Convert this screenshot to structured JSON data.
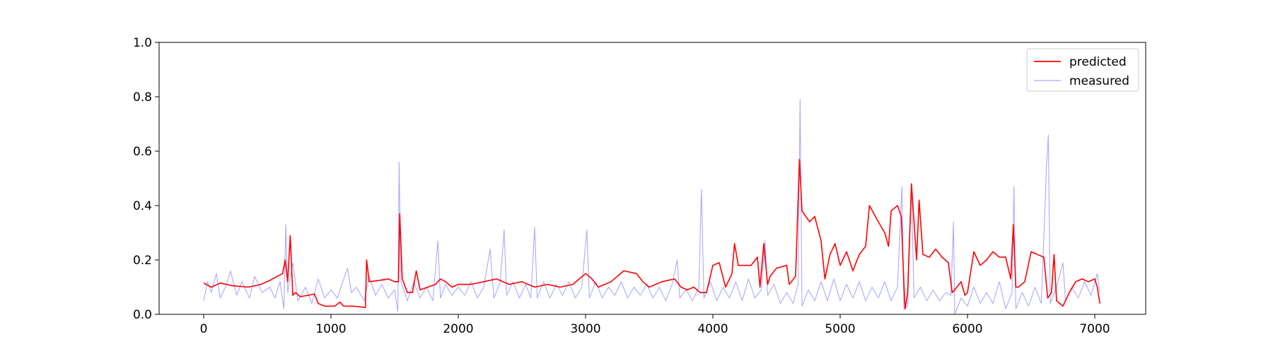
{
  "chart_data": {
    "type": "line",
    "title": "",
    "xlabel": "",
    "ylabel": "",
    "xlim": [
      -350,
      7400
    ],
    "ylim": [
      0.0,
      1.0
    ],
    "x_ticks": [
      0,
      1000,
      2000,
      3000,
      4000,
      5000,
      6000,
      7000
    ],
    "y_ticks": [
      0.0,
      0.2,
      0.4,
      0.6,
      0.8,
      1.0
    ],
    "x_tick_labels": [
      "0",
      "1000",
      "2000",
      "3000",
      "4000",
      "5000",
      "6000",
      "7000"
    ],
    "y_tick_labels": [
      "0.0",
      "0.2",
      "0.4",
      "0.6",
      "0.8",
      "1.0"
    ],
    "grid": false,
    "legend_position": "upper right",
    "series": [
      {
        "name": "predicted",
        "color": "#ff0000",
        "points": [
          [
            0,
            0.115
          ],
          [
            60,
            0.1
          ],
          [
            130,
            0.115
          ],
          [
            230,
            0.105
          ],
          [
            350,
            0.1
          ],
          [
            450,
            0.11
          ],
          [
            520,
            0.125
          ],
          [
            580,
            0.14
          ],
          [
            620,
            0.15
          ],
          [
            640,
            0.2
          ],
          [
            660,
            0.12
          ],
          [
            680,
            0.29
          ],
          [
            700,
            0.07
          ],
          [
            720,
            0.08
          ],
          [
            760,
            0.065
          ],
          [
            820,
            0.07
          ],
          [
            870,
            0.075
          ],
          [
            900,
            0.04
          ],
          [
            950,
            0.03
          ],
          [
            1030,
            0.03
          ],
          [
            1070,
            0.045
          ],
          [
            1100,
            0.03
          ],
          [
            1180,
            0.03
          ],
          [
            1270,
            0.025
          ],
          [
            1280,
            0.2
          ],
          [
            1300,
            0.12
          ],
          [
            1380,
            0.125
          ],
          [
            1450,
            0.13
          ],
          [
            1500,
            0.12
          ],
          [
            1530,
            0.12
          ],
          [
            1540,
            0.37
          ],
          [
            1560,
            0.13
          ],
          [
            1600,
            0.08
          ],
          [
            1640,
            0.08
          ],
          [
            1670,
            0.16
          ],
          [
            1700,
            0.09
          ],
          [
            1760,
            0.1
          ],
          [
            1820,
            0.11
          ],
          [
            1860,
            0.13
          ],
          [
            1900,
            0.12
          ],
          [
            1950,
            0.1
          ],
          [
            2000,
            0.11
          ],
          [
            2100,
            0.11
          ],
          [
            2200,
            0.12
          ],
          [
            2300,
            0.13
          ],
          [
            2400,
            0.11
          ],
          [
            2500,
            0.12
          ],
          [
            2600,
            0.1
          ],
          [
            2700,
            0.11
          ],
          [
            2800,
            0.1
          ],
          [
            2900,
            0.11
          ],
          [
            2950,
            0.13
          ],
          [
            3000,
            0.15
          ],
          [
            3050,
            0.13
          ],
          [
            3100,
            0.1
          ],
          [
            3200,
            0.12
          ],
          [
            3300,
            0.16
          ],
          [
            3400,
            0.15
          ],
          [
            3450,
            0.12
          ],
          [
            3500,
            0.1
          ],
          [
            3600,
            0.12
          ],
          [
            3700,
            0.13
          ],
          [
            3750,
            0.1
          ],
          [
            3800,
            0.09
          ],
          [
            3850,
            0.1
          ],
          [
            3900,
            0.08
          ],
          [
            3950,
            0.08
          ],
          [
            4000,
            0.18
          ],
          [
            4050,
            0.19
          ],
          [
            4100,
            0.1
          ],
          [
            4150,
            0.15
          ],
          [
            4170,
            0.26
          ],
          [
            4200,
            0.18
          ],
          [
            4300,
            0.18
          ],
          [
            4350,
            0.21
          ],
          [
            4370,
            0.1
          ],
          [
            4400,
            0.26
          ],
          [
            4430,
            0.11
          ],
          [
            4450,
            0.14
          ],
          [
            4500,
            0.17
          ],
          [
            4580,
            0.18
          ],
          [
            4600,
            0.11
          ],
          [
            4650,
            0.14
          ],
          [
            4680,
            0.57
          ],
          [
            4700,
            0.38
          ],
          [
            4760,
            0.34
          ],
          [
            4800,
            0.36
          ],
          [
            4850,
            0.27
          ],
          [
            4880,
            0.13
          ],
          [
            4920,
            0.22
          ],
          [
            4960,
            0.26
          ],
          [
            5000,
            0.18
          ],
          [
            5050,
            0.23
          ],
          [
            5100,
            0.16
          ],
          [
            5150,
            0.22
          ],
          [
            5200,
            0.25
          ],
          [
            5230,
            0.4
          ],
          [
            5300,
            0.34
          ],
          [
            5350,
            0.3
          ],
          [
            5380,
            0.25
          ],
          [
            5400,
            0.38
          ],
          [
            5450,
            0.4
          ],
          [
            5480,
            0.36
          ],
          [
            5500,
            0.12
          ],
          [
            5510,
            0.02
          ],
          [
            5530,
            0.08
          ],
          [
            5560,
            0.48
          ],
          [
            5600,
            0.2
          ],
          [
            5620,
            0.42
          ],
          [
            5650,
            0.22
          ],
          [
            5700,
            0.21
          ],
          [
            5750,
            0.24
          ],
          [
            5800,
            0.21
          ],
          [
            5850,
            0.19
          ],
          [
            5880,
            0.08
          ],
          [
            5900,
            0.09
          ],
          [
            5950,
            0.12
          ],
          [
            5980,
            0.07
          ],
          [
            6000,
            0.08
          ],
          [
            6050,
            0.23
          ],
          [
            6100,
            0.18
          ],
          [
            6150,
            0.2
          ],
          [
            6200,
            0.23
          ],
          [
            6250,
            0.21
          ],
          [
            6300,
            0.21
          ],
          [
            6340,
            0.13
          ],
          [
            6360,
            0.33
          ],
          [
            6380,
            0.1
          ],
          [
            6400,
            0.1
          ],
          [
            6450,
            0.12
          ],
          [
            6500,
            0.23
          ],
          [
            6550,
            0.22
          ],
          [
            6600,
            0.21
          ],
          [
            6630,
            0.06
          ],
          [
            6660,
            0.08
          ],
          [
            6680,
            0.22
          ],
          [
            6700,
            0.05
          ],
          [
            6750,
            0.03
          ],
          [
            6800,
            0.08
          ],
          [
            6850,
            0.12
          ],
          [
            6900,
            0.13
          ],
          [
            6950,
            0.12
          ],
          [
            7000,
            0.13
          ],
          [
            7020,
            0.1
          ],
          [
            7040,
            0.04
          ]
        ]
      },
      {
        "name": "measured",
        "color": "#aaaaff",
        "points": [
          [
            0,
            0.05
          ],
          [
            30,
            0.12
          ],
          [
            60,
            0.08
          ],
          [
            100,
            0.15
          ],
          [
            130,
            0.06
          ],
          [
            180,
            0.11
          ],
          [
            210,
            0.16
          ],
          [
            260,
            0.07
          ],
          [
            300,
            0.12
          ],
          [
            360,
            0.06
          ],
          [
            400,
            0.14
          ],
          [
            460,
            0.08
          ],
          [
            520,
            0.1
          ],
          [
            560,
            0.06
          ],
          [
            600,
            0.12
          ],
          [
            630,
            0.02
          ],
          [
            645,
            0.33
          ],
          [
            660,
            0.08
          ],
          [
            700,
            0.19
          ],
          [
            740,
            0.05
          ],
          [
            800,
            0.1
          ],
          [
            850,
            0.04
          ],
          [
            900,
            0.13
          ],
          [
            950,
            0.06
          ],
          [
            1000,
            0.09
          ],
          [
            1050,
            0.06
          ],
          [
            1100,
            0.13
          ],
          [
            1130,
            0.17
          ],
          [
            1160,
            0.08
          ],
          [
            1200,
            0.1
          ],
          [
            1260,
            0.05
          ],
          [
            1300,
            0.14
          ],
          [
            1350,
            0.07
          ],
          [
            1400,
            0.11
          ],
          [
            1450,
            0.06
          ],
          [
            1500,
            0.09
          ],
          [
            1525,
            0.01
          ],
          [
            1535,
            0.56
          ],
          [
            1550,
            0.12
          ],
          [
            1600,
            0.05
          ],
          [
            1650,
            0.12
          ],
          [
            1700,
            0.06
          ],
          [
            1750,
            0.1
          ],
          [
            1800,
            0.05
          ],
          [
            1840,
            0.27
          ],
          [
            1860,
            0.06
          ],
          [
            1900,
            0.11
          ],
          [
            1950,
            0.07
          ],
          [
            2000,
            0.1
          ],
          [
            2050,
            0.07
          ],
          [
            2100,
            0.12
          ],
          [
            2150,
            0.06
          ],
          [
            2200,
            0.1
          ],
          [
            2250,
            0.24
          ],
          [
            2280,
            0.06
          ],
          [
            2330,
            0.12
          ],
          [
            2360,
            0.31
          ],
          [
            2380,
            0.07
          ],
          [
            2430,
            0.12
          ],
          [
            2480,
            0.06
          ],
          [
            2530,
            0.11
          ],
          [
            2570,
            0.06
          ],
          [
            2600,
            0.32
          ],
          [
            2620,
            0.06
          ],
          [
            2670,
            0.12
          ],
          [
            2720,
            0.06
          ],
          [
            2770,
            0.11
          ],
          [
            2820,
            0.07
          ],
          [
            2870,
            0.12
          ],
          [
            2920,
            0.06
          ],
          [
            2970,
            0.1
          ],
          [
            3010,
            0.31
          ],
          [
            3030,
            0.06
          ],
          [
            3080,
            0.12
          ],
          [
            3130,
            0.06
          ],
          [
            3180,
            0.1
          ],
          [
            3230,
            0.07
          ],
          [
            3280,
            0.12
          ],
          [
            3330,
            0.06
          ],
          [
            3380,
            0.1
          ],
          [
            3430,
            0.07
          ],
          [
            3480,
            0.11
          ],
          [
            3530,
            0.06
          ],
          [
            3580,
            0.1
          ],
          [
            3630,
            0.05
          ],
          [
            3680,
            0.11
          ],
          [
            3720,
            0.2
          ],
          [
            3740,
            0.06
          ],
          [
            3790,
            0.09
          ],
          [
            3840,
            0.05
          ],
          [
            3890,
            0.1
          ],
          [
            3910,
            0.46
          ],
          [
            3930,
            0.06
          ],
          [
            3980,
            0.12
          ],
          [
            4030,
            0.05
          ],
          [
            4080,
            0.1
          ],
          [
            4130,
            0.06
          ],
          [
            4180,
            0.12
          ],
          [
            4230,
            0.05
          ],
          [
            4280,
            0.13
          ],
          [
            4330,
            0.06
          ],
          [
            4380,
            0.09
          ],
          [
            4410,
            0.27
          ],
          [
            4430,
            0.07
          ],
          [
            4480,
            0.11
          ],
          [
            4530,
            0.04
          ],
          [
            4580,
            0.08
          ],
          [
            4630,
            0.04
          ],
          [
            4670,
            0.11
          ],
          [
            4685,
            0.79
          ],
          [
            4700,
            0.03
          ],
          [
            4750,
            0.09
          ],
          [
            4800,
            0.05
          ],
          [
            4850,
            0.12
          ],
          [
            4900,
            0.05
          ],
          [
            4950,
            0.13
          ],
          [
            5000,
            0.05
          ],
          [
            5050,
            0.11
          ],
          [
            5100,
            0.06
          ],
          [
            5150,
            0.12
          ],
          [
            5200,
            0.05
          ],
          [
            5250,
            0.1
          ],
          [
            5300,
            0.06
          ],
          [
            5350,
            0.12
          ],
          [
            5400,
            0.05
          ],
          [
            5450,
            0.1
          ],
          [
            5485,
            0.47
          ],
          [
            5500,
            0.02
          ],
          [
            5530,
            0.03
          ],
          [
            5560,
            0.47
          ],
          [
            5580,
            0.06
          ],
          [
            5630,
            0.1
          ],
          [
            5680,
            0.05
          ],
          [
            5730,
            0.09
          ],
          [
            5780,
            0.05
          ],
          [
            5830,
            0.08
          ],
          [
            5870,
            0.07
          ],
          [
            5890,
            0.34
          ],
          [
            5900,
            0.0
          ],
          [
            5950,
            0.06
          ],
          [
            6000,
            0.03
          ],
          [
            6050,
            0.1
          ],
          [
            6100,
            0.04
          ],
          [
            6150,
            0.08
          ],
          [
            6200,
            0.04
          ],
          [
            6250,
            0.12
          ],
          [
            6300,
            0.02
          ],
          [
            6350,
            0.08
          ],
          [
            6365,
            0.47
          ],
          [
            6380,
            0.02
          ],
          [
            6430,
            0.08
          ],
          [
            6480,
            0.03
          ],
          [
            6530,
            0.1
          ],
          [
            6580,
            0.04
          ],
          [
            6620,
            0.54
          ],
          [
            6635,
            0.66
          ],
          [
            6650,
            0.04
          ],
          [
            6700,
            0.1
          ],
          [
            6750,
            0.19
          ],
          [
            6770,
            0.05
          ],
          [
            6820,
            0.1
          ],
          [
            6870,
            0.06
          ],
          [
            6920,
            0.12
          ],
          [
            6970,
            0.07
          ],
          [
            7020,
            0.15
          ],
          [
            7040,
            0.08
          ]
        ]
      }
    ]
  }
}
